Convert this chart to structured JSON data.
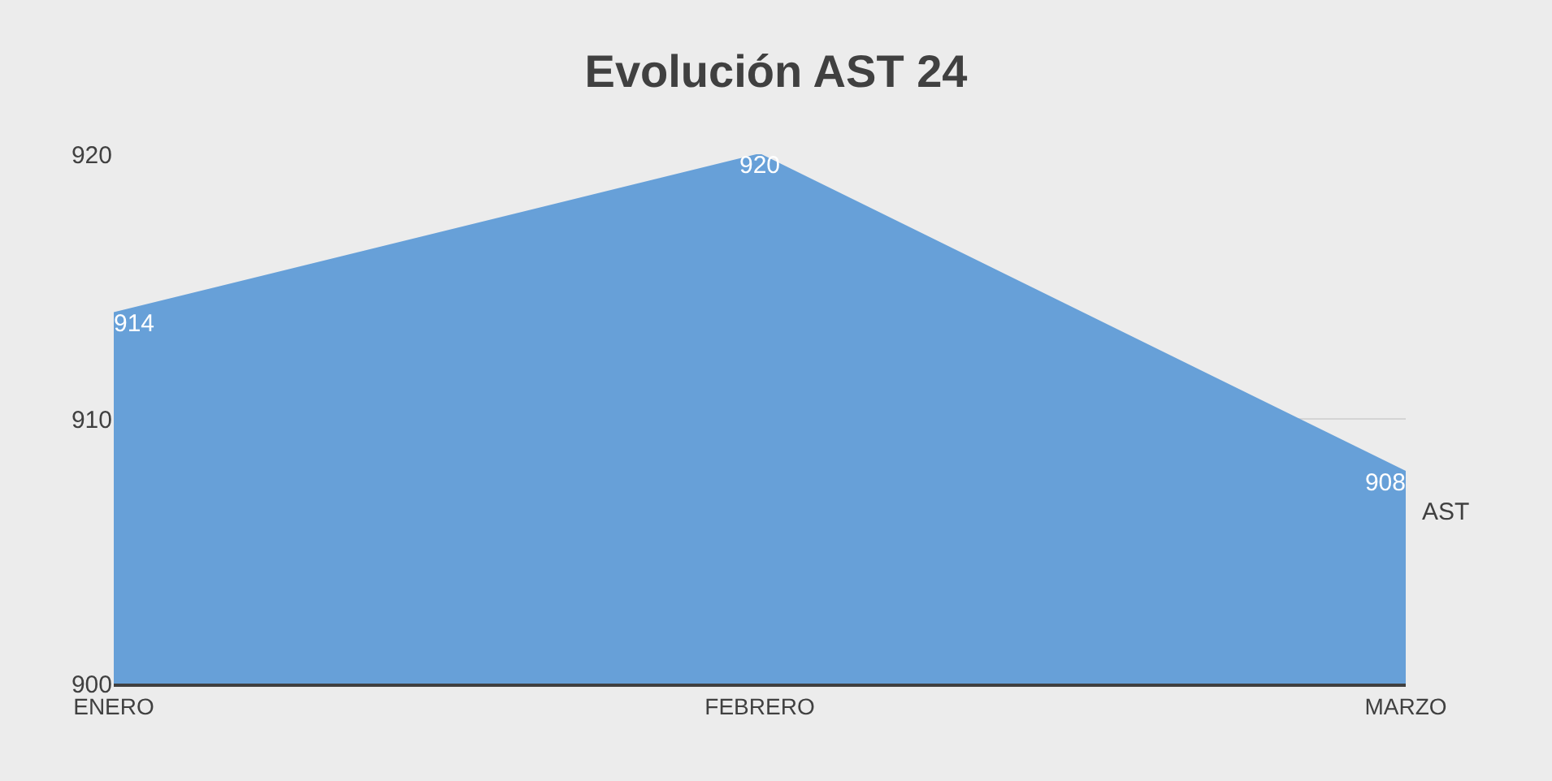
{
  "chart_data": {
    "type": "area",
    "title": "Evolución AST 24",
    "categories": [
      "ENERO",
      "FEBRERO",
      "MARZO"
    ],
    "series": [
      {
        "name": "AST",
        "color": "#67a0d8",
        "values": [
          914,
          920,
          908
        ]
      }
    ],
    "ylim": [
      900,
      920
    ],
    "yticks": [
      900,
      910,
      920
    ],
    "grid": "y",
    "data_labels": true,
    "legend": false
  }
}
